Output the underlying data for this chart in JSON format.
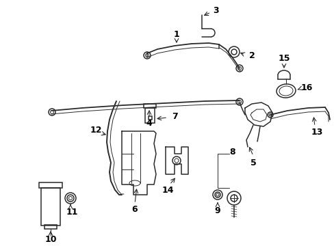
{
  "background_color": "#ffffff",
  "line_color": "#2a2a2a",
  "label_color": "#000000",
  "figsize": [
    4.89,
    3.6
  ],
  "dpi": 100,
  "font_size": 9,
  "lw": 1.1,
  "thin": 0.7
}
